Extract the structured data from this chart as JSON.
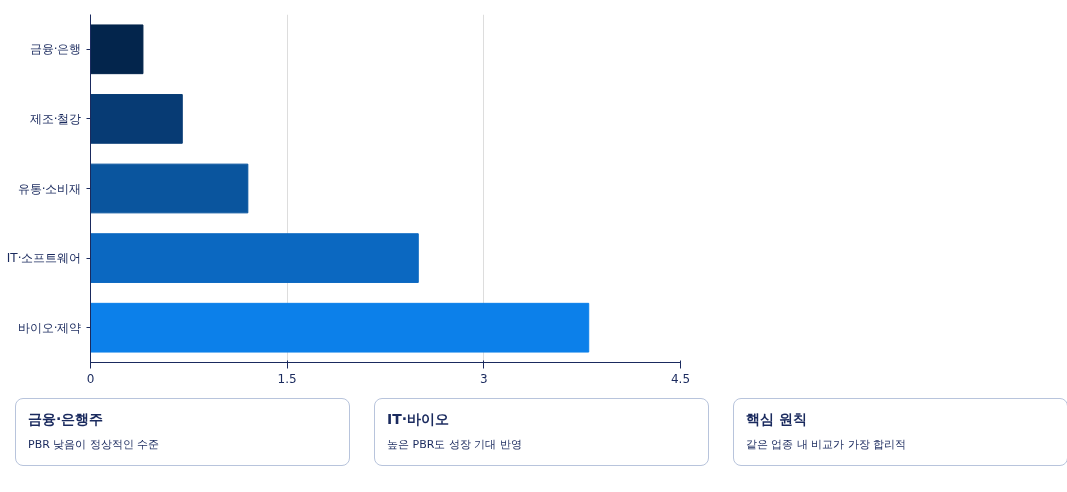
{
  "chart_data": [
    {
      "type": "bar",
      "orientation": "horizontal",
      "categories": [
        "금융·은행",
        "제조·철강",
        "유통·소비재",
        "IT·소프트웨어",
        "바이오·제약"
      ],
      "values": [
        0.4,
        0.7,
        1.2,
        2.5,
        3.8
      ],
      "colors": [
        "#03254c",
        "#073b74",
        "#0a559e",
        "#0b68c1",
        "#0c80ea"
      ],
      "xlim": [
        0,
        4.5
      ],
      "xticks": [
        0,
        1.5,
        3,
        4.5
      ],
      "grid": "x"
    },
    {
      "type": "other",
      "title": "금융·은행주",
      "subtitle": "PBR 낮음이 정상적인 수준"
    },
    {
      "type": "other",
      "title": "IT·바이오",
      "subtitle": "높은 PBR도 성장 기대 반영"
    },
    {
      "type": "other",
      "title": "핵심 원칙",
      "subtitle": "같은 업종 내 비교가 가장 합리적"
    }
  ]
}
